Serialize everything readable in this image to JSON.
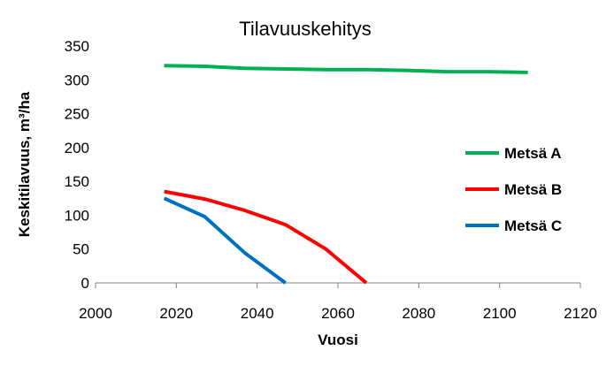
{
  "chart_data": {
    "type": "line",
    "title": "Tilavuuskehitys",
    "xlabel": "Vuosi",
    "ylabel": "Keskitilavuus, m³/ha",
    "xlim": [
      2000,
      2120
    ],
    "ylim": [
      0,
      350
    ],
    "xticks": [
      "2000",
      "2020",
      "2040",
      "2060",
      "2080",
      "2100",
      "2120"
    ],
    "yticks": [
      "0",
      "50",
      "100",
      "150",
      "200",
      "250",
      "300",
      "350"
    ],
    "grid": false,
    "legend_position": "right",
    "series": [
      {
        "name": "Metsä A",
        "color": "#00B050",
        "x": [
          2017,
          2027,
          2037,
          2047,
          2057,
          2067,
          2077,
          2087,
          2097,
          2107
        ],
        "y": [
          321,
          320,
          317,
          316,
          315,
          315,
          314,
          312,
          312,
          311
        ]
      },
      {
        "name": "Metsä B",
        "color": "#FF0000",
        "x": [
          2017,
          2027,
          2037,
          2047,
          2057,
          2067
        ],
        "y": [
          135,
          124,
          107,
          86,
          50,
          0
        ]
      },
      {
        "name": "Metsä C",
        "color": "#0070C0",
        "x": [
          2017,
          2027,
          2037,
          2047
        ],
        "y": [
          125,
          98,
          44,
          0
        ]
      }
    ]
  }
}
